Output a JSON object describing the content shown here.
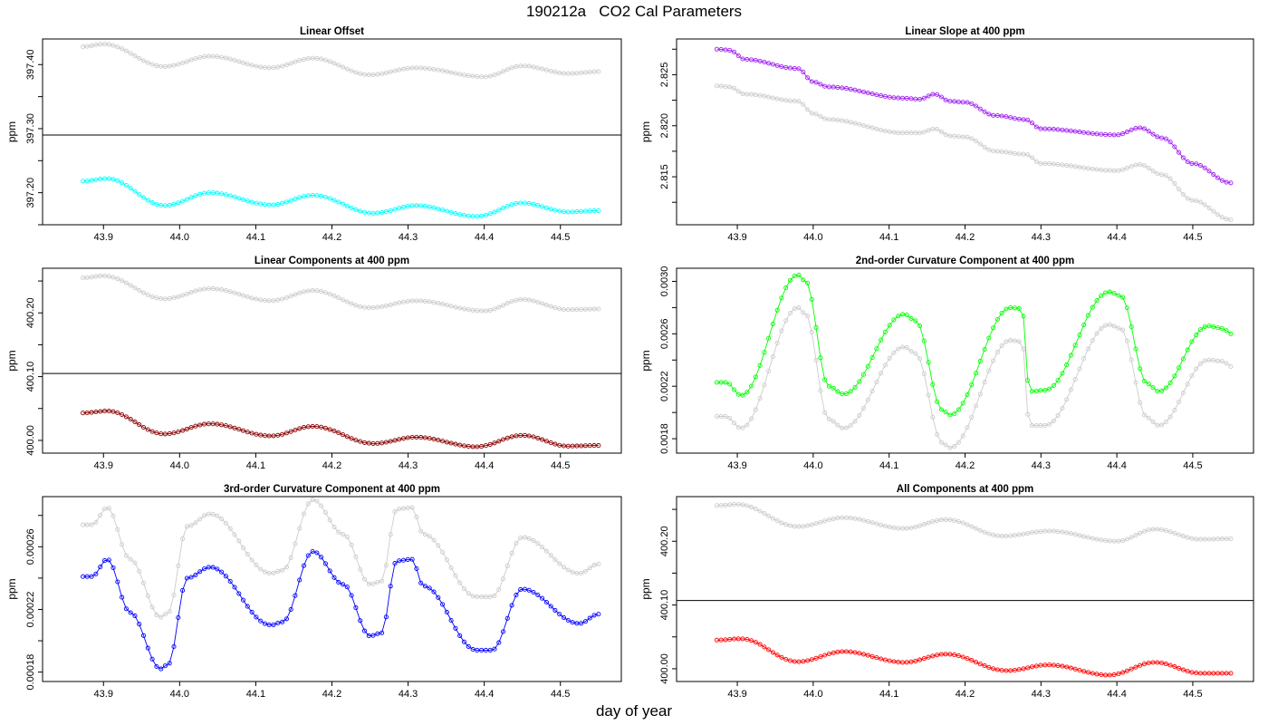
{
  "figure": {
    "title": "190212a   CO2 Cal Parameters",
    "xlabel": "day of year"
  },
  "chart_data": [
    {
      "type": "line",
      "title": "Linear Offset",
      "ylabel": "ppm",
      "xlim": [
        43.82,
        44.58
      ],
      "ylim": [
        397.15,
        397.44
      ],
      "xticks": [
        "43.9",
        "44.0",
        "44.1",
        "44.2",
        "44.3",
        "44.4",
        "44.5"
      ],
      "xtick_values": [
        43.9,
        44.0,
        44.1,
        44.2,
        44.3,
        44.4,
        44.5
      ],
      "yticks": [
        "397.20",
        "397.30",
        "397.40"
      ],
      "ytick_values": [
        397.2,
        397.3,
        397.4
      ],
      "hline": 397.29,
      "x_start": 43.873,
      "x_end": 44.55,
      "series": [
        {
          "color": "#cccccc",
          "x": [
            43.873,
            43.9,
            43.98,
            44.04,
            44.12,
            44.175,
            44.25,
            44.31,
            44.4,
            44.45,
            44.51,
            44.55
          ],
          "y": [
            397.428,
            397.432,
            397.397,
            397.413,
            397.395,
            397.41,
            397.384,
            397.395,
            397.381,
            397.398,
            397.386,
            397.389
          ]
        },
        {
          "color": "#00ffff",
          "x": [
            43.873,
            43.905,
            43.98,
            44.04,
            44.12,
            44.175,
            44.255,
            44.31,
            44.39,
            44.45,
            44.51,
            44.55
          ],
          "y": [
            397.218,
            397.222,
            397.18,
            397.2,
            397.181,
            397.196,
            397.168,
            397.18,
            397.163,
            397.184,
            397.17,
            397.172
          ]
        }
      ]
    },
    {
      "type": "line",
      "title": "Linear Slope at 400 ppm",
      "ylabel": "ppm",
      "xlim": [
        43.82,
        44.58
      ],
      "ylim": [
        2.8103,
        2.8285
      ],
      "xticks": [
        "43.9",
        "44.0",
        "44.1",
        "44.2",
        "44.3",
        "44.4",
        "44.5"
      ],
      "xtick_values": [
        43.9,
        44.0,
        44.1,
        44.2,
        44.3,
        44.4,
        44.5
      ],
      "yticks": [
        "2.815",
        "2.820",
        "2.825"
      ],
      "ytick_values": [
        2.815,
        2.82,
        2.825
      ],
      "x_start": 43.873,
      "x_end": 44.55,
      "series": [
        {
          "color": "#cccccc",
          "x": [
            43.873,
            43.89,
            43.91,
            43.98,
            44.0,
            44.02,
            44.12,
            44.14,
            44.16,
            44.18,
            44.2,
            44.24,
            44.28,
            44.3,
            44.4,
            44.43,
            44.46,
            44.5,
            44.55
          ],
          "y": [
            2.8239,
            2.8238,
            2.8231,
            2.8224,
            2.8212,
            2.8206,
            2.8193,
            2.8193,
            2.8197,
            2.819,
            2.8189,
            2.8175,
            2.8172,
            2.8163,
            2.8156,
            2.8162,
            2.8152,
            2.8127,
            2.8108
          ]
        },
        {
          "color": "#a020f0",
          "x": [
            43.873,
            43.89,
            43.91,
            43.98,
            44.0,
            44.02,
            44.12,
            44.14,
            44.16,
            44.18,
            44.2,
            44.24,
            44.28,
            44.3,
            44.4,
            44.43,
            44.46,
            44.5,
            44.55
          ],
          "y": [
            2.8275,
            2.8274,
            2.8265,
            2.8256,
            2.8243,
            2.8238,
            2.8227,
            2.8226,
            2.8231,
            2.8224,
            2.8223,
            2.821,
            2.8206,
            2.8197,
            2.8191,
            2.8198,
            2.8188,
            2.8163,
            2.8144
          ]
        }
      ]
    },
    {
      "type": "line",
      "title": "Linear Components at 400 ppm",
      "ylabel": "ppm",
      "xlim": [
        43.82,
        44.58
      ],
      "ylim": [
        399.98,
        400.27
      ],
      "xticks": [
        "43.9",
        "44.0",
        "44.1",
        "44.2",
        "44.3",
        "44.4",
        "44.5"
      ],
      "xtick_values": [
        43.9,
        44.0,
        44.1,
        44.2,
        44.3,
        44.4,
        44.5
      ],
      "yticks": [
        "400.00",
        "400.10",
        "400.20"
      ],
      "ytick_values": [
        400.0,
        400.1,
        400.2
      ],
      "hline": 400.105,
      "x_start": 43.873,
      "x_end": 44.55,
      "series": [
        {
          "color": "#cccccc",
          "x": [
            43.873,
            43.9,
            43.98,
            44.04,
            44.12,
            44.175,
            44.25,
            44.31,
            44.4,
            44.45,
            44.51,
            44.55
          ],
          "y": [
            400.255,
            400.258,
            400.222,
            400.238,
            400.219,
            400.235,
            400.208,
            400.219,
            400.203,
            400.221,
            400.205,
            400.206
          ]
        },
        {
          "color": "#8b0000",
          "x": [
            43.873,
            43.905,
            43.98,
            44.04,
            44.12,
            44.175,
            44.255,
            44.31,
            44.39,
            44.45,
            44.51,
            44.55
          ],
          "y": [
            400.043,
            400.046,
            400.01,
            400.026,
            400.007,
            400.022,
            399.995,
            400.005,
            399.99,
            400.008,
            399.991,
            399.992
          ]
        }
      ]
    },
    {
      "type": "line",
      "title": "2nd-order Curvature Component at 400 ppm",
      "ylabel": "ppm",
      "xlim": [
        43.82,
        44.58
      ],
      "ylim": [
        0.00169,
        0.0031
      ],
      "xticks": [
        "43.9",
        "44.0",
        "44.1",
        "44.2",
        "44.3",
        "44.4",
        "44.5"
      ],
      "xtick_values": [
        43.9,
        44.0,
        44.1,
        44.2,
        44.3,
        44.4,
        44.5
      ],
      "yticks": [
        "0.0018",
        "0.0022",
        "0.0026",
        "0.0030"
      ],
      "ytick_values": [
        0.0018,
        0.0022,
        0.0026,
        0.003
      ],
      "x_start": 43.873,
      "x_end": 44.55,
      "series": [
        {
          "color": "#cccccc",
          "x": [
            43.873,
            43.885,
            43.905,
            43.98,
            43.99,
            44.02,
            44.04,
            44.12,
            44.135,
            44.17,
            44.18,
            44.26,
            44.275,
            44.285,
            44.305,
            44.39,
            44.405,
            44.44,
            44.455,
            44.52,
            44.54,
            44.55
          ],
          "y": [
            0.00197,
            0.00197,
            0.00188,
            0.0028,
            0.00275,
            0.00195,
            0.00188,
            0.0025,
            0.00245,
            0.00177,
            0.00173,
            0.00255,
            0.00254,
            0.0019,
            0.0019,
            0.00267,
            0.00264,
            0.00196,
            0.0019,
            0.0024,
            0.00239,
            0.00235
          ]
        },
        {
          "color": "#00ff00",
          "x": [
            43.873,
            43.885,
            43.905,
            43.98,
            43.99,
            44.02,
            44.04,
            44.12,
            44.135,
            44.17,
            44.18,
            44.26,
            44.275,
            44.285,
            44.305,
            44.39,
            44.405,
            44.44,
            44.455,
            44.52,
            44.54,
            44.55
          ],
          "y": [
            0.00223,
            0.00223,
            0.00213,
            0.00305,
            0.003,
            0.0022,
            0.00214,
            0.00275,
            0.0027,
            0.00202,
            0.00198,
            0.0028,
            0.00279,
            0.00216,
            0.00217,
            0.00292,
            0.00289,
            0.00222,
            0.00216,
            0.00266,
            0.00264,
            0.0026
          ]
        }
      ]
    },
    {
      "type": "line",
      "title": "3rd-order Curvature Component at 400 ppm",
      "ylabel": "ppm",
      "xlim": [
        43.82,
        44.58
      ],
      "ylim": [
        0.000174,
        0.000292
      ],
      "xticks": [
        "43.9",
        "44.0",
        "44.1",
        "44.2",
        "44.3",
        "44.4",
        "44.5"
      ],
      "xtick_values": [
        43.9,
        44.0,
        44.1,
        44.2,
        44.3,
        44.4,
        44.5
      ],
      "yticks": [
        "0.00018",
        "0.00022",
        "0.00026"
      ],
      "ytick_values": [
        0.00018,
        0.00022,
        0.00026
      ],
      "x_start": 43.873,
      "x_end": 44.55,
      "series": [
        {
          "color": "#cccccc",
          "x": [
            43.873,
            43.885,
            43.905,
            43.935,
            43.975,
            43.985,
            44.01,
            44.04,
            44.12,
            44.135,
            44.175,
            44.215,
            44.25,
            44.265,
            44.285,
            44.305,
            44.32,
            44.39,
            44.41,
            44.45,
            44.525,
            44.55
          ],
          "y": [
            0.000274,
            0.000274,
            0.000285,
            0.000252,
            0.000215,
            0.000218,
            0.000273,
            0.000281,
            0.000243,
            0.000245,
            0.00029,
            0.000268,
            0.000236,
            0.000238,
            0.000284,
            0.000285,
            0.000268,
            0.000228,
            0.000228,
            0.000266,
            0.000243,
            0.000249
          ]
        },
        {
          "color": "#0000ff",
          "x": [
            43.873,
            43.885,
            43.905,
            43.935,
            43.975,
            43.985,
            44.01,
            44.04,
            44.12,
            44.135,
            44.175,
            44.215,
            44.25,
            44.265,
            44.285,
            44.305,
            44.32,
            44.39,
            44.41,
            44.45,
            44.525,
            44.55
          ],
          "y": [
            0.000241,
            0.000241,
            0.000252,
            0.000218,
            0.000182,
            0.000185,
            0.00024,
            0.000247,
            0.00021,
            0.000212,
            0.000257,
            0.000236,
            0.000203,
            0.000205,
            0.000251,
            0.000252,
            0.000235,
            0.000194,
            0.000194,
            0.000233,
            0.000211,
            0.000217
          ]
        }
      ]
    },
    {
      "type": "line",
      "title": "All Components at 400 ppm",
      "ylabel": "ppm",
      "xlim": [
        43.82,
        44.58
      ],
      "ylim": [
        399.98,
        400.27
      ],
      "xticks": [
        "43.9",
        "44.0",
        "44.1",
        "44.2",
        "44.3",
        "44.4",
        "44.5"
      ],
      "xtick_values": [
        43.9,
        44.0,
        44.1,
        44.2,
        44.3,
        44.4,
        44.5
      ],
      "yticks": [
        "400.00",
        "400.10",
        "400.20"
      ],
      "ytick_values": [
        400.0,
        400.1,
        400.2
      ],
      "hline": 400.107,
      "x_start": 43.873,
      "x_end": 44.55,
      "series": [
        {
          "color": "#cccccc",
          "x": [
            43.873,
            43.9,
            43.98,
            44.04,
            44.12,
            44.175,
            44.25,
            44.31,
            44.4,
            44.45,
            44.51,
            44.55
          ],
          "y": [
            400.256,
            400.258,
            400.223,
            400.237,
            400.22,
            400.234,
            400.208,
            400.216,
            400.2,
            400.219,
            400.203,
            400.204
          ]
        },
        {
          "color": "#ff0000",
          "x": [
            43.873,
            43.905,
            43.98,
            44.04,
            44.12,
            44.175,
            44.255,
            44.31,
            44.39,
            44.45,
            44.51,
            44.55
          ],
          "y": [
            400.045,
            400.047,
            400.011,
            400.027,
            400.01,
            400.023,
            399.997,
            400.006,
            399.99,
            400.01,
            399.993,
            399.993
          ]
        }
      ]
    }
  ]
}
